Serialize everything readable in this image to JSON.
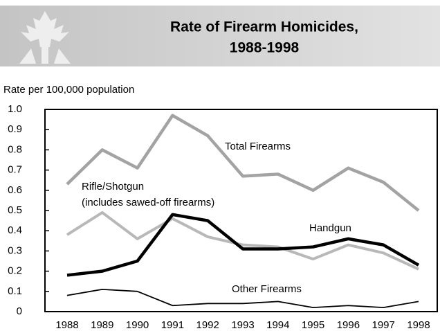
{
  "chart_data": {
    "type": "line",
    "title": [
      "Rate of Firearm Homicides,",
      "1988-1998"
    ],
    "y_label": "Rate per 100,000 population",
    "categories": [
      "1988",
      "1989",
      "1990",
      "1991",
      "1992",
      "1993",
      "1994",
      "1995",
      "1996",
      "1997",
      "1998"
    ],
    "ylim": [
      0,
      1
    ],
    "yticks": [
      0,
      0.1,
      0.2,
      0.3,
      0.4,
      0.5,
      0.6,
      0.7,
      0.8,
      0.9,
      {
        "value": 1,
        "label": "1.0"
      }
    ],
    "series": [
      {
        "name": "Total Firearms",
        "color": "#a3a3a3",
        "values": [
          0.63,
          0.8,
          0.71,
          0.97,
          0.87,
          0.67,
          0.68,
          0.6,
          0.71,
          0.64,
          0.5
        ]
      },
      {
        "name": "Rifle/Shotgun",
        "note": "(includes sawed-off firearms)",
        "color": "#b8b8b8",
        "values": [
          0.38,
          0.49,
          0.36,
          0.46,
          0.37,
          0.33,
          0.32,
          0.26,
          0.33,
          0.29,
          0.21
        ]
      },
      {
        "name": "Handgun",
        "color": "#000000",
        "values": [
          0.18,
          0.2,
          0.25,
          0.48,
          0.45,
          0.31,
          0.31,
          0.32,
          0.36,
          0.33,
          0.23
        ]
      },
      {
        "name": "Other Firearms",
        "color": "#000000",
        "values": [
          0.08,
          0.11,
          0.1,
          0.03,
          0.04,
          0.04,
          0.05,
          0.02,
          0.03,
          0.02,
          0.05
        ]
      }
    ]
  }
}
